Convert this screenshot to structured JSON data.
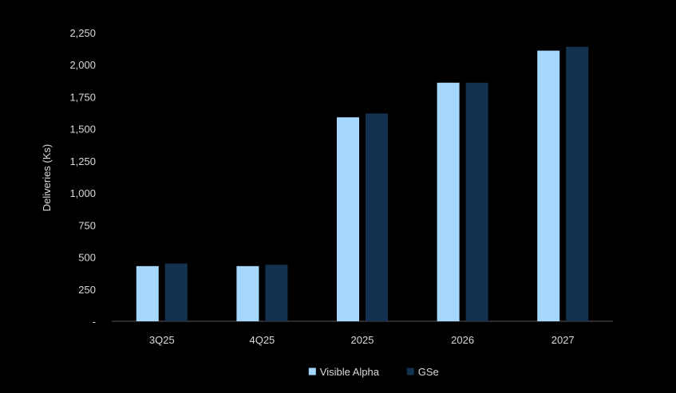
{
  "chart_data": {
    "type": "bar",
    "categories": [
      "3Q25",
      "4Q25",
      "2025",
      "2026",
      "2027"
    ],
    "series": [
      {
        "name": "Visible Alpha",
        "color": "#a6d8ff",
        "values": [
          430,
          430,
          1590,
          1860,
          2110
        ]
      },
      {
        "name": "GSe",
        "color": "#13324f",
        "values": [
          450,
          440,
          1620,
          1860,
          2140
        ]
      }
    ],
    "title": "",
    "xlabel": "",
    "ylabel": "Deliveries (Ks)",
    "ylim": [
      0,
      2250
    ],
    "yticks": [
      0,
      250,
      500,
      750,
      1000,
      1250,
      1500,
      1750,
      2000,
      2250
    ],
    "ytick_labels": [
      "-",
      "250",
      "500",
      "750",
      "1,000",
      "1,250",
      "1,500",
      "1,750",
      "2,000",
      "2,250"
    ],
    "grid": false,
    "legend_position": "bottom-center",
    "colors": {
      "background": "#000000",
      "text": "#d9d9d9",
      "axis": "#595959"
    }
  }
}
